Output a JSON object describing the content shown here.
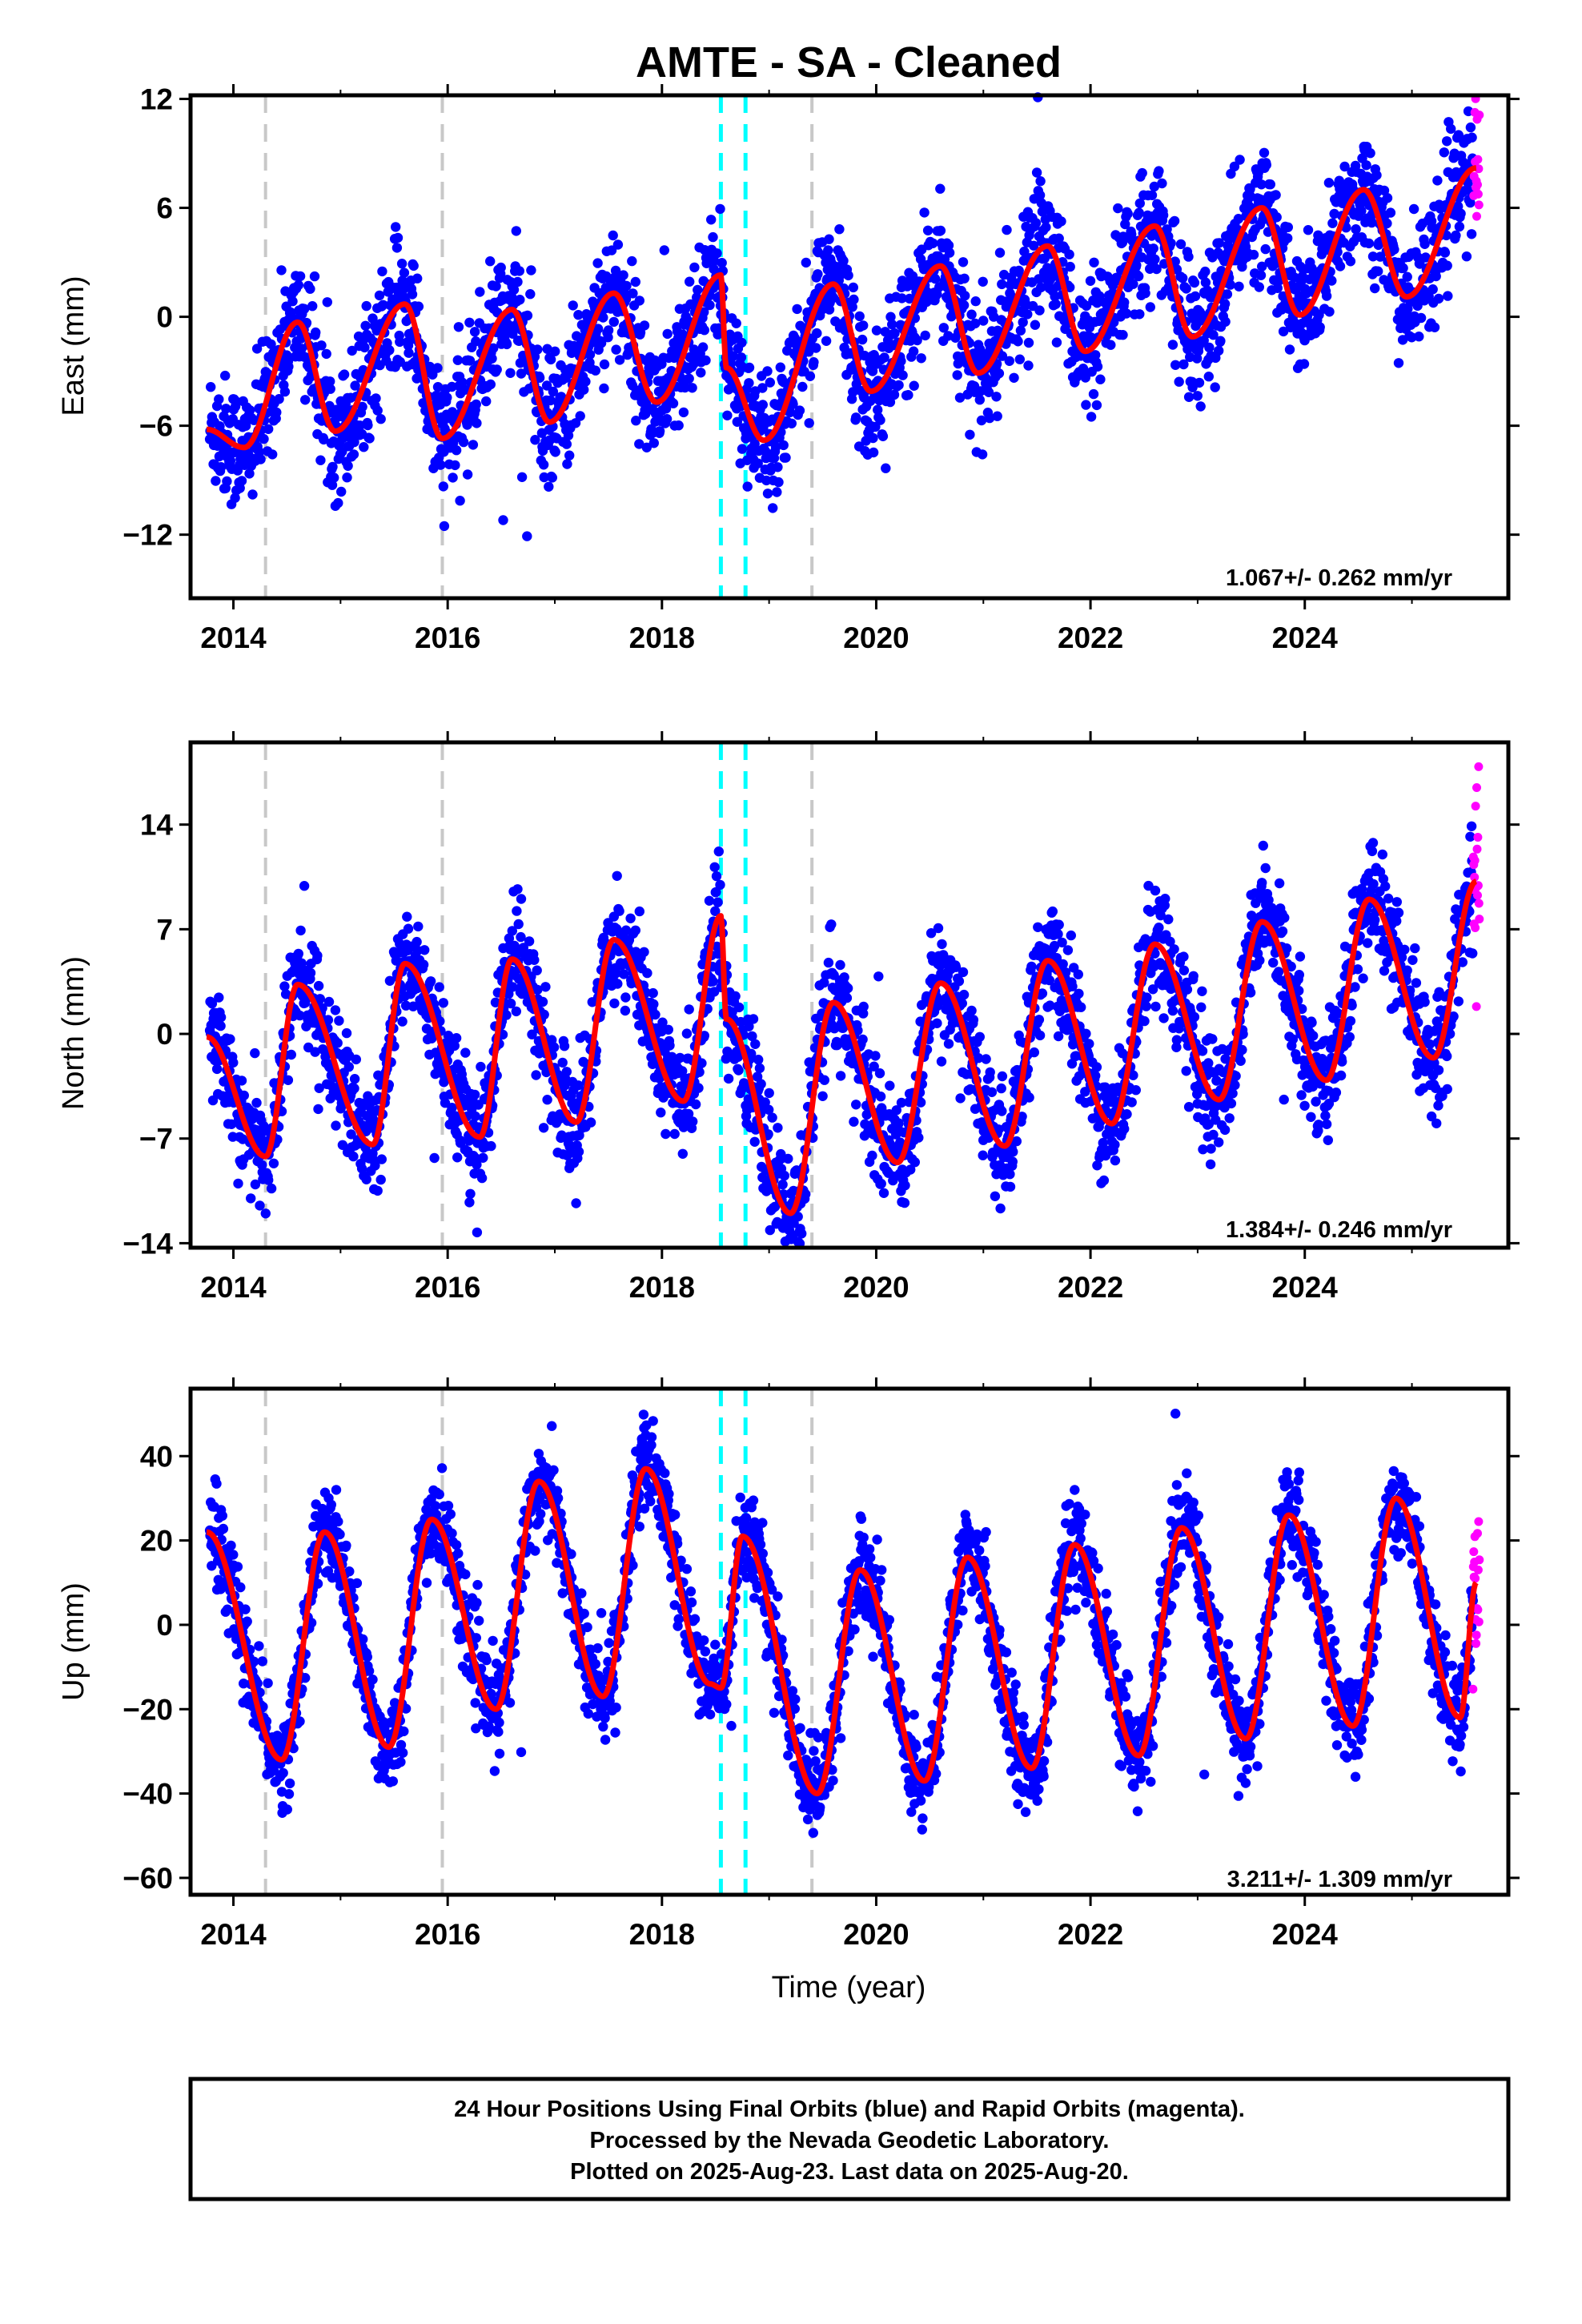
{
  "title": "AMTE  - SA - Cleaned",
  "xlabel": "Time (year)",
  "colors": {
    "final": "#0000ff",
    "rapid": "#ff00ff",
    "model": "#ff0000",
    "equipment_change": "#c8c8c8",
    "earthquake": "#00ffff"
  },
  "x_ticks": [
    "2014",
    "2016",
    "2018",
    "2020",
    "2022",
    "2024"
  ],
  "footer": {
    "line1": "24 Hour Positions Using Final Orbits (blue) and Rapid Orbits (magenta).",
    "line2": "Processed by the Nevada Geodetic Laboratory.",
    "line3": "Plotted on 2025-Aug-23. Last data on 2025-Aug-20."
  },
  "chart_data": [
    {
      "type": "scatter",
      "component": "East",
      "ylabel": "East (mm)",
      "xlim": [
        2013.6,
        2025.9
      ],
      "ylim": [
        -15.5,
        12.2
      ],
      "y_ticks": [
        12,
        6,
        0,
        -6,
        -12
      ],
      "rate_text": "1.067+/- 0.262 mm/yr",
      "rate_mm_per_yr": 1.067,
      "offset_mm": 0.0,
      "seasonal_amplitude_mm": 3.2,
      "seasonal_peak": 0.55,
      "scatter_mm": 1.7,
      "model_x": [
        2013.75,
        2014.1,
        2014.6,
        2014.95,
        2015.6,
        2015.95,
        2016.6,
        2016.95,
        2017.55,
        2017.95,
        2018.55,
        2018.6,
        2018.95,
        2019.6,
        2019.95,
        2020.6,
        2020.95,
        2021.6,
        2021.95,
        2022.6,
        2022.95,
        2023.6,
        2023.95,
        2024.55,
        2024.95,
        2025.6
      ],
      "model_y": [
        -6.2,
        -7.2,
        -0.3,
        -6.3,
        0.7,
        -6.7,
        0.4,
        -5.8,
        1.3,
        -4.7,
        2.3,
        -2.8,
        -6.8,
        1.8,
        -4.1,
        2.8,
        -3.1,
        3.9,
        -1.9,
        5.0,
        -1.1,
        6.0,
        0.1,
        7.0,
        1.1,
        8.2
      ]
    },
    {
      "type": "scatter",
      "component": "North",
      "ylabel": "North (mm)",
      "xlim": [
        2013.6,
        2025.9
      ],
      "ylim": [
        -14.3,
        19.5
      ],
      "y_ticks": [
        14,
        7,
        0,
        -7,
        -14
      ],
      "rate_text": "1.384+/- 0.246 mm/yr",
      "rate_mm_per_yr": 1.384,
      "offset_mm": -2.0,
      "seasonal_amplitude_mm": 5.8,
      "seasonal_peak": 0.55,
      "scatter_mm": 1.9,
      "model_x": [
        2013.75,
        2014.3,
        2014.6,
        2015.3,
        2015.6,
        2016.3,
        2016.6,
        2017.2,
        2017.55,
        2018.2,
        2018.55,
        2018.6,
        2019.2,
        2019.6,
        2020.2,
        2020.6,
        2021.2,
        2021.6,
        2022.2,
        2022.6,
        2023.2,
        2023.6,
        2024.2,
        2024.6,
        2025.2,
        2025.6
      ],
      "model_y": [
        -0.2,
        -8.2,
        3.3,
        -7.4,
        4.7,
        -6.9,
        5.0,
        -5.9,
        6.3,
        -4.5,
        7.9,
        1.0,
        -12.0,
        2.1,
        -8.6,
        3.4,
        -7.5,
        4.9,
        -6.0,
        6.0,
        -4.4,
        7.5,
        -3.1,
        9.0,
        -1.6,
        10.2
      ]
    },
    {
      "type": "scatter",
      "component": "Up",
      "ylabel": "Up (mm)",
      "xlim": [
        2013.6,
        2025.9
      ],
      "ylim": [
        -64,
        56
      ],
      "y_ticks": [
        40,
        20,
        0,
        -20,
        -40,
        -60
      ],
      "rate_text": "3.211+/- 1.309 mm/yr",
      "rate_mm_per_yr": 3.211,
      "offset_mm": 0.0,
      "seasonal_amplitude_mm": 27.0,
      "seasonal_peak": 0.85,
      "scatter_mm": 5.5,
      "model_x": [
        2013.75,
        2014.45,
        2014.85,
        2015.45,
        2015.85,
        2016.45,
        2016.85,
        2017.45,
        2017.85,
        2018.45,
        2018.55,
        2018.75,
        2019.45,
        2019.85,
        2020.45,
        2020.85,
        2021.45,
        2021.85,
        2022.45,
        2022.85,
        2023.45,
        2023.85,
        2024.45,
        2024.85,
        2025.45,
        2025.6
      ],
      "model_y": [
        22,
        -32,
        22,
        -29,
        25,
        -20,
        34,
        -17,
        37,
        -14,
        -15,
        21,
        -40,
        13,
        -37,
        16,
        -34,
        19,
        -31,
        23,
        -27,
        26,
        -24,
        30,
        -22,
        10
      ]
    }
  ],
  "equipment_changes": [
    2014.3,
    2015.95,
    2019.4
  ],
  "earthquakes": [
    2018.55,
    2018.78
  ],
  "data_span": [
    2013.78,
    2025.63
  ],
  "rapid_span": [
    2025.57,
    2025.63
  ]
}
